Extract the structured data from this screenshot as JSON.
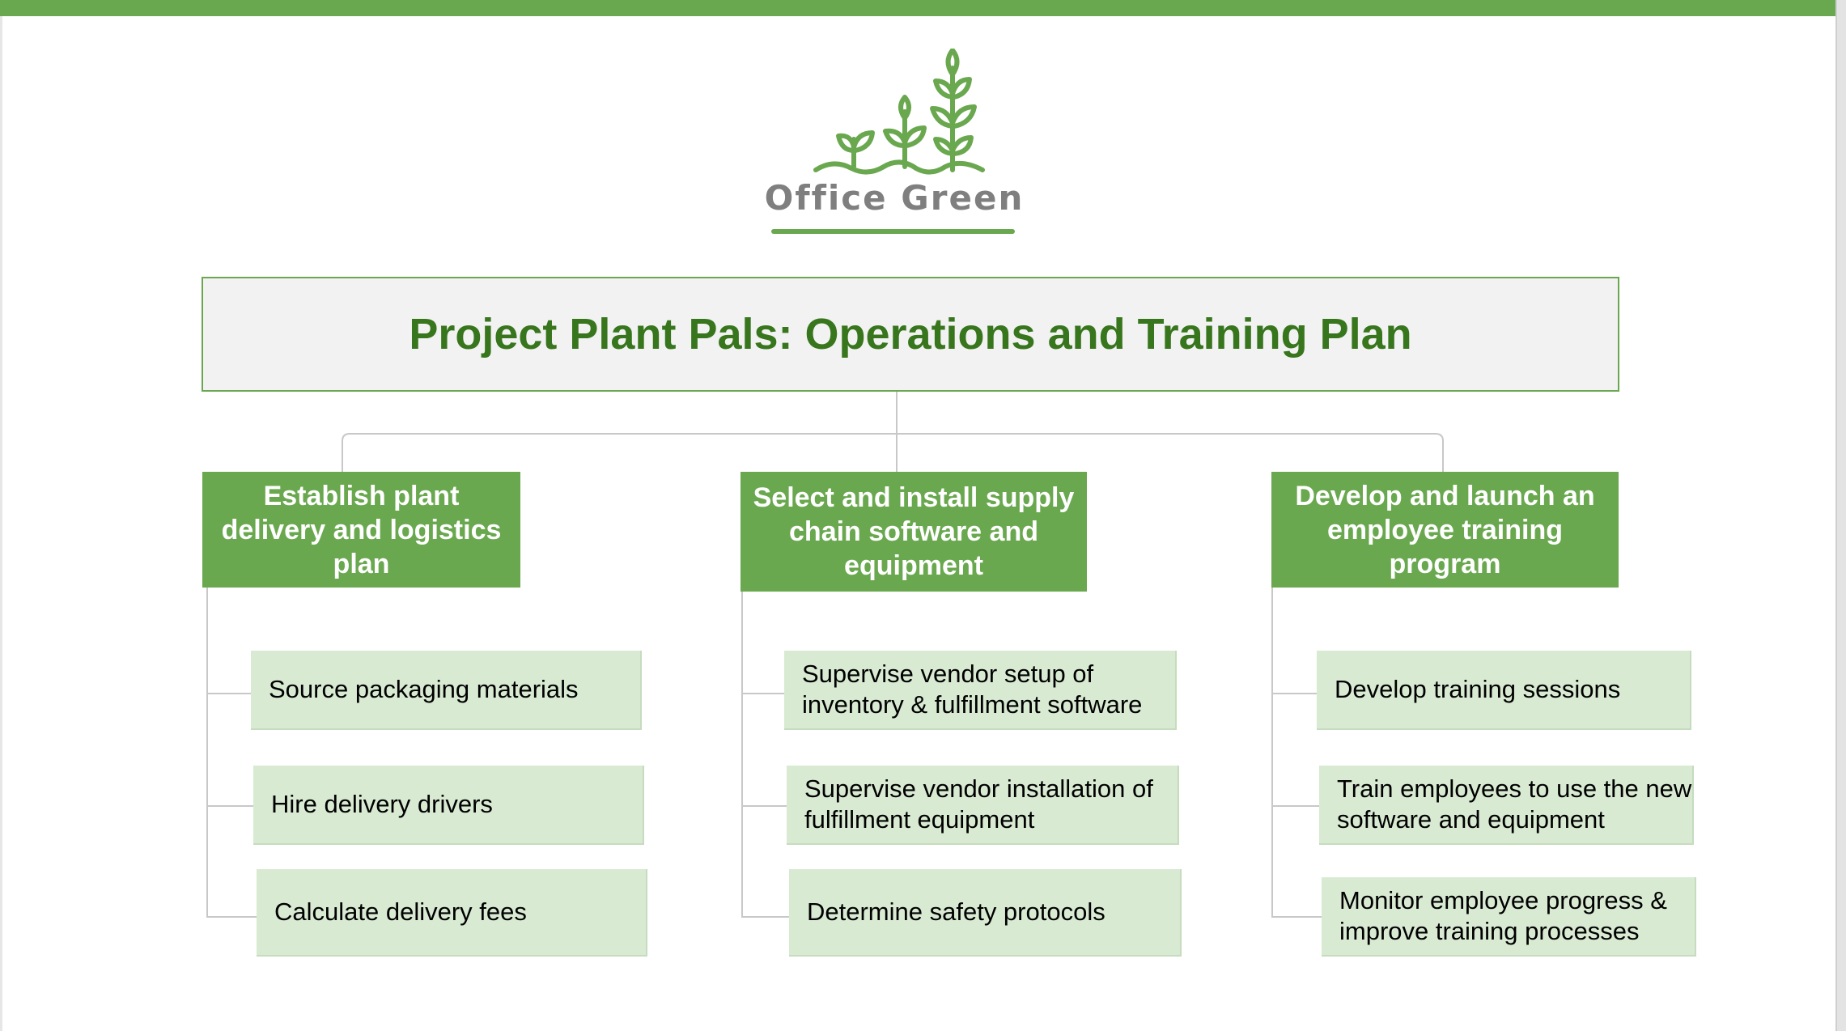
{
  "logo": {
    "text": "Office Green",
    "icon": "sprouting-plants-icon"
  },
  "title": "Project Plant Pals: Operations and Training Plan",
  "columns": [
    {
      "heading": "Establish plant delivery and logistics plan",
      "tasks": [
        "Source packaging materials",
        "Hire delivery drivers",
        "Calculate delivery fees"
      ]
    },
    {
      "heading": "Select and install supply chain software and equipment",
      "tasks": [
        "Supervise vendor setup of inventory & fulfillment software",
        "Supervise vendor installation of fulfillment equipment",
        "Determine safety protocols"
      ]
    },
    {
      "heading": "Develop and launch an employee training program",
      "tasks": [
        "Develop training sessions",
        "Train employees to use the new software and equipment",
        "Monitor employee progress & improve training processes"
      ]
    }
  ],
  "colors": {
    "accent": "#6aa84f",
    "title_text": "#38761d",
    "task_fill": "#d9ead3",
    "title_fill": "#f2f2f2",
    "logo_text": "#7f7f7f"
  }
}
